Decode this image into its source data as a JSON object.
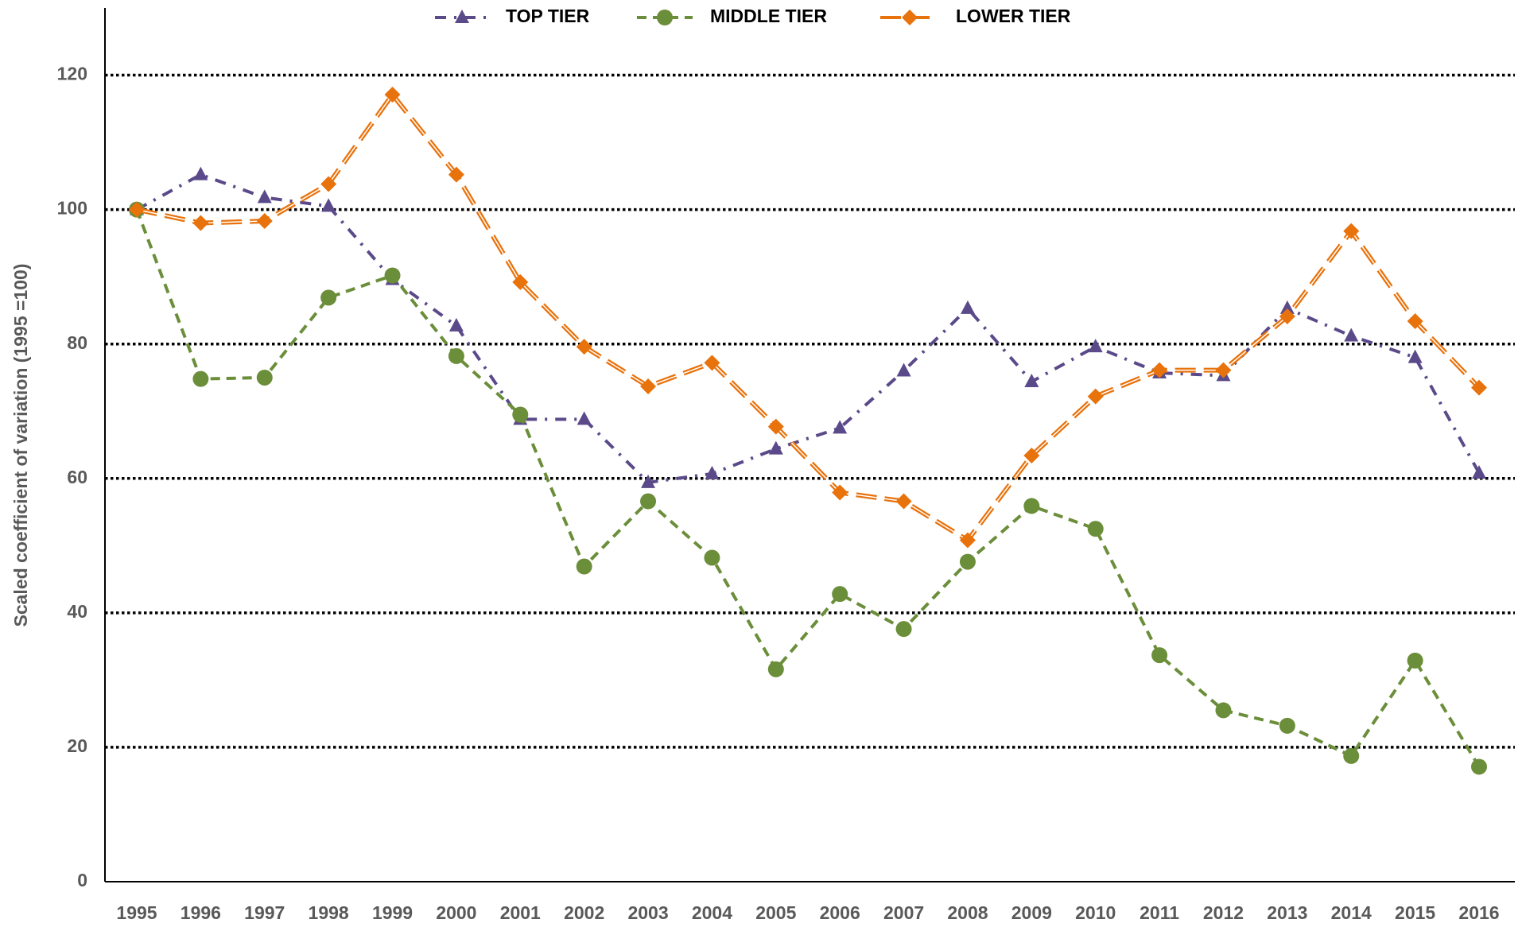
{
  "chart_data": {
    "type": "line",
    "y_label": "Scaled coefficient of variation (1995 =100)",
    "categories": [
      "1995",
      "1996",
      "1997",
      "1998",
      "1999",
      "2000",
      "2001",
      "2002",
      "2003",
      "2004",
      "2005",
      "2006",
      "2007",
      "2008",
      "2009",
      "2010",
      "2011",
      "2012",
      "2013",
      "2014",
      "2015",
      "2016"
    ],
    "series": [
      {
        "name": "TOP TIER",
        "color": "#5b4a8a",
        "dash": "dashdot",
        "marker": "triangle",
        "values": [
          100,
          105.2,
          101.8,
          100.5,
          89.6,
          82.7,
          68.8,
          68.8,
          59.4,
          60.7,
          64.4,
          67.5,
          76.0,
          85.3,
          74.4,
          79.6,
          75.7,
          75.3,
          85.3,
          81.2,
          78.0,
          60.8
        ]
      },
      {
        "name": "MIDDLE TIER",
        "color": "#6b8e3a",
        "dash": "dashed",
        "marker": "circle",
        "values": [
          100,
          74.8,
          75.0,
          86.9,
          90.2,
          78.2,
          69.5,
          46.9,
          56.6,
          48.2,
          31.6,
          42.8,
          37.6,
          47.6,
          55.9,
          52.5,
          33.7,
          25.5,
          23.2,
          18.7,
          32.9,
          17.1
        ]
      },
      {
        "name": "LOWER TIER",
        "color": "#e8720c",
        "dash": "longdash",
        "marker": "diamond",
        "values": [
          100,
          98.0,
          98.3,
          103.8,
          117.1,
          105.2,
          89.2,
          79.6,
          73.7,
          77.2,
          67.7,
          57.9,
          56.6,
          50.8,
          63.4,
          72.2,
          76.1,
          76.1,
          84.1,
          96.8,
          83.4,
          73.5
        ]
      }
    ],
    "ylim": [
      0,
      130
    ],
    "yticks": [
      0,
      20,
      40,
      60,
      80,
      100,
      120
    ],
    "grid": true,
    "legend": "top"
  }
}
